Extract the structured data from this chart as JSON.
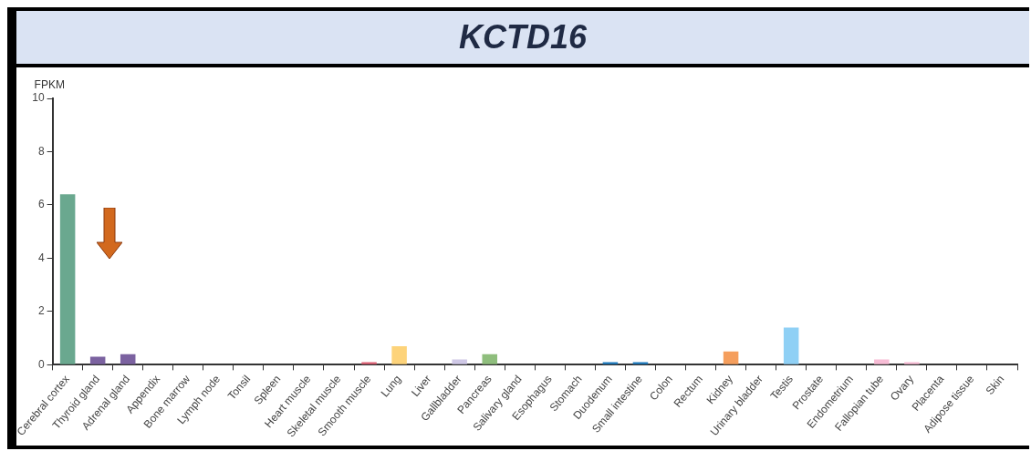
{
  "chart_data": {
    "type": "bar",
    "title": "KCTD16",
    "ylabel": "FPKM",
    "categories": [
      "Cerebral cortex",
      "Thyroid gland",
      "Adrenal gland",
      "Appendix",
      "Bone marrow",
      "Lymph node",
      "Tonsil",
      "Spleen",
      "Heart muscle",
      "Skeletal muscle",
      "Smooth muscle",
      "Lung",
      "Liver",
      "Gallbladder",
      "Pancreas",
      "Salivary gland",
      "Esophagus",
      "Stomach",
      "Duodenum",
      "Small intestine",
      "Colon",
      "Rectum",
      "Kidney",
      "Urinary bladder",
      "Testis",
      "Prostate",
      "Endometrium",
      "Fallopian tube",
      "Ovary",
      "Placenta",
      "Adipose tissue",
      "Skin"
    ],
    "values": [
      6.4,
      0.3,
      0.4,
      0,
      0,
      0,
      0,
      0,
      0,
      0,
      0.1,
      0.7,
      0,
      0.2,
      0.4,
      0,
      0,
      0,
      0.1,
      0.1,
      0,
      0,
      0.5,
      0,
      1.4,
      0,
      0,
      0.2,
      0.1,
      0,
      0,
      0
    ],
    "colors": [
      "#6aa88f",
      "#7b62a0",
      "#7b62a0",
      "#999999",
      "#999999",
      "#999999",
      "#999999",
      "#999999",
      "#999999",
      "#999999",
      "#e06377",
      "#fdd37a",
      "#999999",
      "#cfc8e6",
      "#8fbe7d",
      "#999999",
      "#999999",
      "#999999",
      "#1f7cc0",
      "#1f7cc0",
      "#999999",
      "#999999",
      "#f59e5c",
      "#999999",
      "#8fd0f5",
      "#999999",
      "#999999",
      "#f7bcd5",
      "#f7bcd5",
      "#999999",
      "#999999",
      "#999999"
    ],
    "ylim": [
      0,
      10
    ],
    "yticks": [
      0,
      2,
      4,
      6,
      8,
      10
    ],
    "grid": false
  }
}
